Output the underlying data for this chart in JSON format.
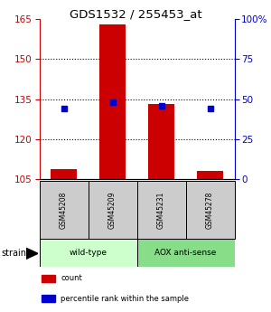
{
  "title": "GDS1532 / 255453_at",
  "samples": [
    "GSM45208",
    "GSM45209",
    "GSM45231",
    "GSM45278"
  ],
  "count_values": [
    109,
    163,
    133,
    108
  ],
  "percentile_values": [
    44,
    48,
    46,
    44
  ],
  "ylim_left": [
    105,
    165
  ],
  "ylim_right": [
    0,
    100
  ],
  "yticks_left": [
    105,
    120,
    135,
    150,
    165
  ],
  "yticks_right": [
    0,
    25,
    50,
    75,
    100
  ],
  "grid_ticks": [
    120,
    135,
    150
  ],
  "bar_color": "#cc0000",
  "dot_color": "#0000cc",
  "bar_width": 0.55,
  "groups": [
    {
      "label": "wild-type",
      "samples": [
        0,
        1
      ],
      "color": "#ccffcc"
    },
    {
      "label": "AOX anti-sense",
      "samples": [
        2,
        3
      ],
      "color": "#88dd88"
    }
  ],
  "strain_label": "strain",
  "legend_items": [
    {
      "color": "#cc0000",
      "label": "count"
    },
    {
      "color": "#0000cc",
      "label": "percentile rank within the sample"
    }
  ],
  "left_axis_color": "#cc0000",
  "right_axis_color": "#0000cc",
  "background_color": "#ffffff",
  "plot_bg_color": "#ffffff",
  "sample_box_color": "#cccccc"
}
